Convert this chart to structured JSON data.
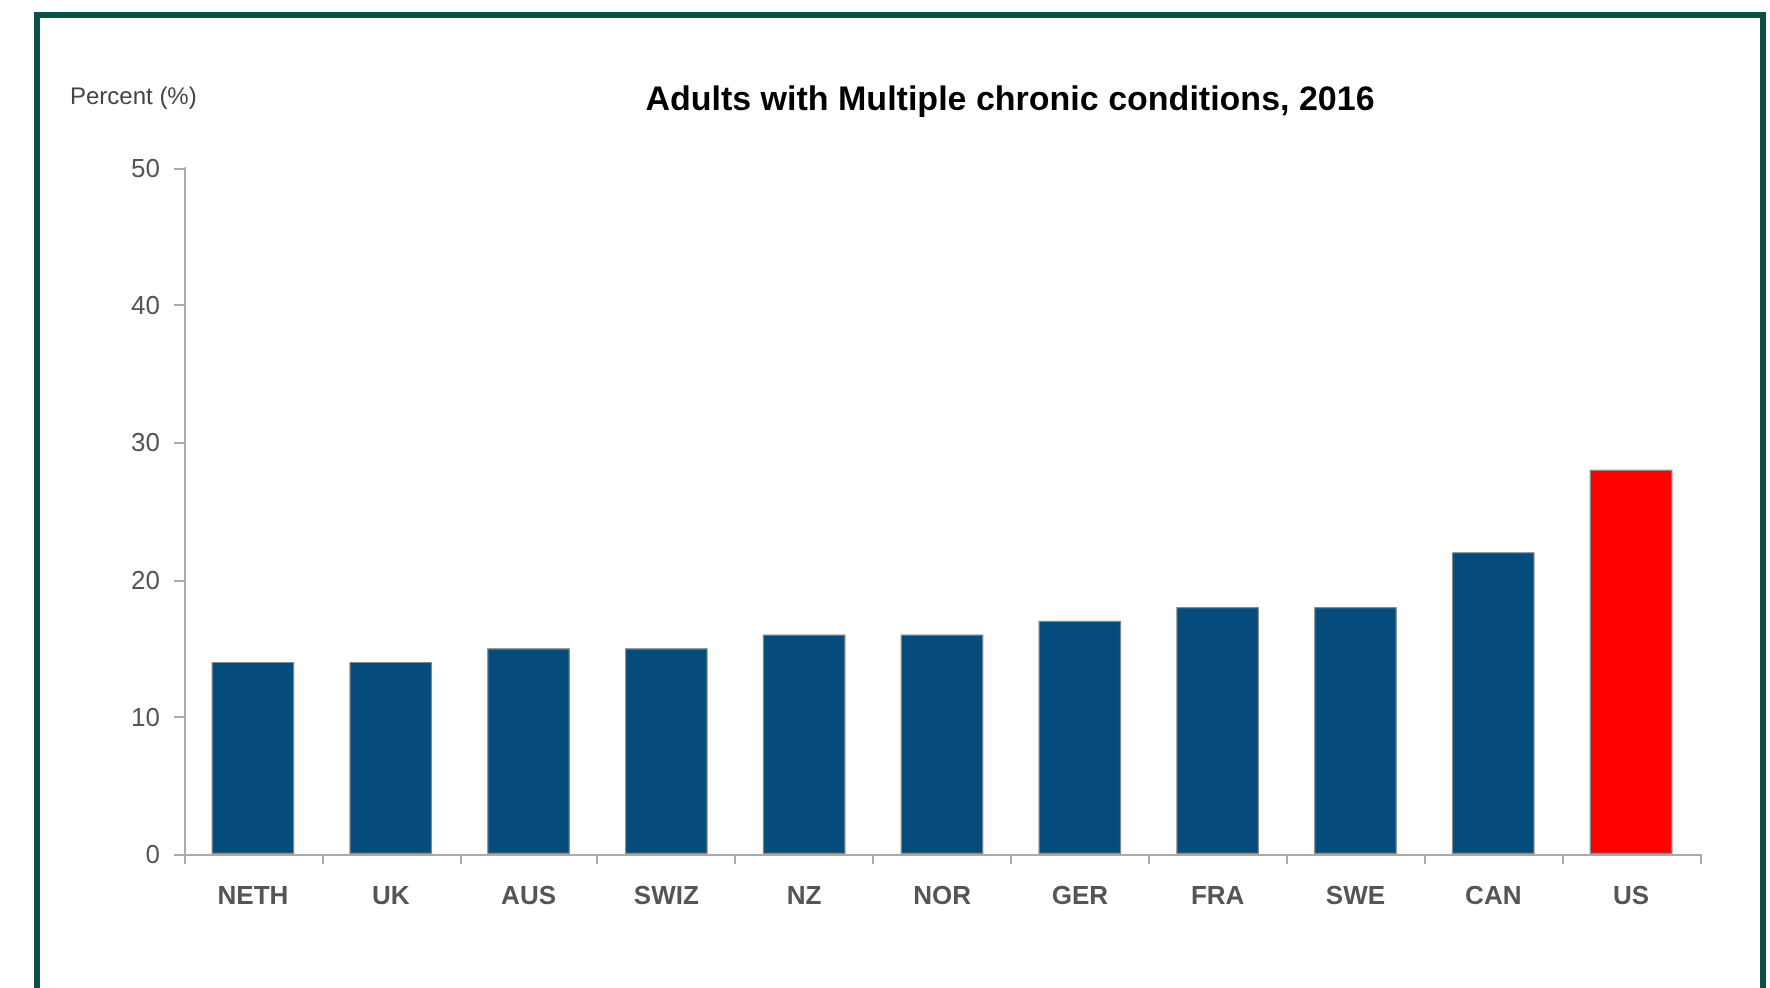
{
  "chart_data": {
    "type": "bar",
    "title": "Adults with Multiple chronic conditions, 2016",
    "ylabel": "Percent (%)",
    "categories": [
      "NETH",
      "UK",
      "AUS",
      "SWIZ",
      "NZ",
      "NOR",
      "GER",
      "FRA",
      "SWE",
      "CAN",
      "US"
    ],
    "values": [
      14,
      14,
      15,
      15,
      16,
      16,
      17,
      18,
      18,
      22,
      28
    ],
    "colors": [
      "#054c7d",
      "#054c7d",
      "#054c7d",
      "#054c7d",
      "#054c7d",
      "#054c7d",
      "#054c7d",
      "#054c7d",
      "#054c7d",
      "#054c7d",
      "#ff0000"
    ],
    "ylim": [
      0,
      50
    ],
    "yticks": [
      0,
      10,
      20,
      30,
      40,
      50
    ],
    "grid": false
  }
}
